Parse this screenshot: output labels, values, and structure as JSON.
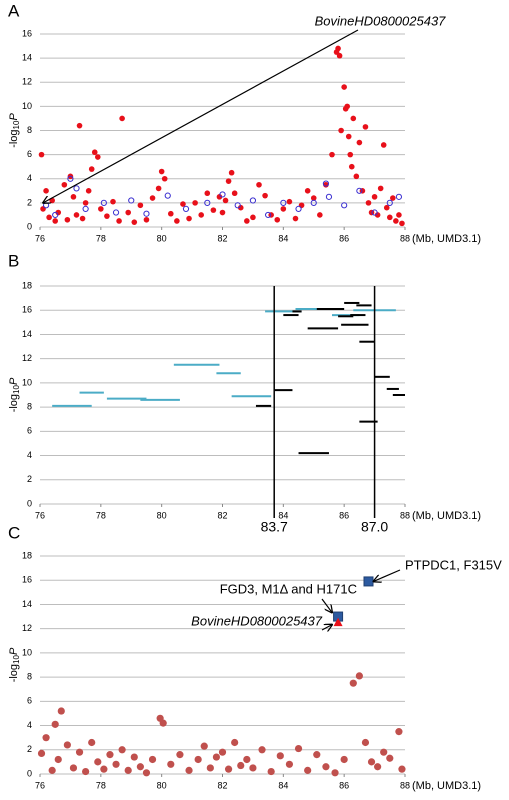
{
  "chart_data": [
    {
      "type": "scatter",
      "label": "A",
      "ylabel": [
        "-log",
        "10",
        "P"
      ],
      "xlabel": "(Mb, UMD3.1)",
      "annotations": [
        "BovineHD0800025437"
      ],
      "xlim": [
        76,
        88
      ],
      "xticks": [
        76,
        78,
        80,
        82,
        84,
        86,
        88
      ],
      "ylim": [
        0,
        16
      ],
      "yticks": [
        0,
        2,
        4,
        6,
        8,
        10,
        12,
        14,
        16
      ],
      "grid": true,
      "series": [
        {
          "color": "#e8101a",
          "marker": "circle",
          "x": [
            76.05,
            76.1,
            76.2,
            76.3,
            76.4,
            76.5,
            76.6,
            76.8,
            76.9,
            77.0,
            77.1,
            77.2,
            77.3,
            77.4,
            77.5,
            77.6,
            77.7,
            77.8,
            77.9,
            78.0,
            78.2,
            78.4,
            78.6,
            78.7,
            78.9,
            79.1,
            79.3,
            79.5,
            79.7,
            79.9,
            80.0,
            80.1,
            80.3,
            80.5,
            80.7,
            80.9,
            81.1,
            81.3,
            81.5,
            81.7,
            81.9,
            82.0,
            82.1,
            82.2,
            82.3,
            82.4,
            82.6,
            82.8,
            83.0,
            83.2,
            83.4,
            83.6,
            83.8,
            84.0,
            84.2,
            84.4,
            84.6,
            84.8,
            85.0,
            85.2,
            85.4,
            85.6,
            85.75,
            85.8,
            85.85,
            85.9,
            86.0,
            86.05,
            86.1,
            86.15,
            86.2,
            86.25,
            86.3,
            86.4,
            86.5,
            86.6,
            86.7,
            86.8,
            86.9,
            87.0,
            87.1,
            87.2,
            87.3,
            87.4,
            87.5,
            87.6,
            87.7,
            87.8,
            87.9
          ],
          "values": [
            6.0,
            1.5,
            3.0,
            0.8,
            2.2,
            0.5,
            1.2,
            3.5,
            0.6,
            4.2,
            2.5,
            1.0,
            8.4,
            0.7,
            2.0,
            3.0,
            4.8,
            6.2,
            5.8,
            1.5,
            0.9,
            2.1,
            0.5,
            9.0,
            1.2,
            0.4,
            1.8,
            0.6,
            2.4,
            3.2,
            4.6,
            4.0,
            1.1,
            0.5,
            1.9,
            0.7,
            2.0,
            1.0,
            2.8,
            1.4,
            2.5,
            1.2,
            2.2,
            3.8,
            4.5,
            2.8,
            1.6,
            0.5,
            0.8,
            3.5,
            2.6,
            1.0,
            0.6,
            1.5,
            2.1,
            0.7,
            1.8,
            3.0,
            2.4,
            1.0,
            3.5,
            6.0,
            14.5,
            14.8,
            14.2,
            8.0,
            11.6,
            9.8,
            10.0,
            7.5,
            6.0,
            5.0,
            9.0,
            4.2,
            7.0,
            3.0,
            8.3,
            2.0,
            1.2,
            2.5,
            1.0,
            3.2,
            6.8,
            1.6,
            0.8,
            2.4,
            0.5,
            1.0,
            0.3
          ]
        },
        {
          "color": "#3a2fd0",
          "marker": "open-circle",
          "x": [
            76.2,
            76.5,
            77.0,
            77.2,
            77.5,
            78.1,
            78.5,
            79.0,
            79.5,
            80.2,
            80.8,
            81.5,
            82.0,
            82.5,
            83.0,
            83.5,
            84.0,
            84.5,
            85.0,
            85.4,
            85.5,
            86.0,
            86.5,
            87.0,
            87.5,
            87.8
          ],
          "values": [
            1.8,
            1.0,
            4.0,
            3.2,
            1.5,
            2.0,
            1.2,
            2.2,
            1.1,
            2.6,
            1.5,
            2.0,
            2.7,
            1.8,
            2.2,
            1.0,
            2.0,
            1.5,
            2.0,
            3.6,
            2.5,
            1.8,
            3.0,
            1.2,
            2.0,
            2.5
          ]
        }
      ]
    },
    {
      "type": "segment",
      "label": "B",
      "ylabel": [
        "-log",
        "10",
        "P"
      ],
      "xlabel": "(Mb, UMD3.1)",
      "xlim": [
        76,
        88
      ],
      "xticks": [
        76,
        78,
        80,
        82,
        84,
        86,
        88
      ],
      "ylim": [
        0,
        18
      ],
      "yticks": [
        0,
        2,
        4,
        6,
        8,
        10,
        12,
        14,
        16,
        18
      ],
      "grid": true,
      "vlines": [
        83.7,
        {
          "value": 87,
          "label": "87.0"
        }
      ],
      "series": [
        {
          "color": "#4bacc6",
          "x_start": [
            76.4,
            77.3,
            78.2,
            79.3,
            80.4,
            81.8,
            82.3,
            83.4,
            84.4,
            85.6,
            86.3
          ],
          "x_end": [
            77.7,
            78.1,
            79.5,
            80.6,
            81.9,
            82.6,
            83.6,
            84.6,
            85.5,
            86.5,
            87.7
          ],
          "values": [
            8.1,
            9.2,
            8.7,
            8.6,
            11.5,
            10.8,
            8.9,
            15.9,
            16.1,
            15.6,
            16.0
          ]
        },
        {
          "color": "#000000",
          "x_start": [
            83.1,
            83.7,
            84.0,
            84.3,
            84.5,
            84.8,
            85.1,
            85.8,
            85.9,
            86.0,
            86.4,
            86.5,
            86.5,
            87.0,
            87.4,
            87.6,
            86.2
          ],
          "x_end": [
            83.6,
            84.3,
            84.5,
            84.6,
            85.5,
            85.8,
            86.0,
            86.3,
            86.8,
            86.5,
            86.9,
            87.0,
            87.1,
            87.5,
            87.8,
            88.0,
            86.7
          ],
          "values": [
            8.1,
            9.4,
            15.6,
            15.9,
            4.2,
            14.5,
            16.1,
            15.5,
            14.8,
            16.6,
            16.4,
            13.4,
            6.8,
            10.5,
            9.5,
            9.0,
            15.6
          ]
        }
      ]
    },
    {
      "type": "scatter",
      "label": "C",
      "ylabel": [
        "-log",
        "10",
        "P"
      ],
      "xlabel": "(Mb, UMD3.1)",
      "annotations": [
        "PTPDC1, F315V",
        "FGD3, M1Δ and H171C",
        "BovineHD0800025437"
      ],
      "xlim": [
        76,
        88
      ],
      "xticks": [
        76,
        78,
        80,
        82,
        84,
        86,
        88
      ],
      "ylim": [
        0,
        18
      ],
      "yticks": [
        0,
        2,
        4,
        6,
        8,
        10,
        12,
        14,
        16,
        18
      ],
      "grid": true,
      "series": [
        {
          "color": "#c0504d",
          "marker": "circle",
          "x": [
            76.05,
            76.2,
            76.4,
            76.5,
            76.6,
            76.7,
            76.9,
            77.1,
            77.3,
            77.5,
            77.7,
            77.9,
            78.1,
            78.3,
            78.5,
            78.7,
            78.9,
            79.1,
            79.3,
            79.5,
            79.7,
            79.95,
            80.05,
            80.3,
            80.6,
            80.9,
            81.2,
            81.4,
            81.6,
            81.8,
            82.0,
            82.2,
            82.4,
            82.6,
            82.8,
            83.0,
            83.3,
            83.6,
            83.9,
            84.2,
            84.5,
            84.8,
            85.1,
            85.4,
            85.7,
            86.0,
            86.3,
            86.5,
            86.7,
            86.9,
            87.1,
            87.3,
            87.5,
            87.8,
            87.9
          ],
          "values": [
            1.7,
            3.0,
            0.3,
            4.1,
            1.2,
            5.2,
            2.4,
            0.5,
            1.8,
            0.2,
            2.6,
            1.0,
            0.4,
            1.6,
            0.8,
            2.0,
            0.3,
            1.4,
            0.6,
            0.1,
            1.2,
            4.6,
            4.2,
            0.8,
            1.6,
            0.3,
            1.2,
            2.3,
            0.5,
            1.4,
            1.8,
            0.4,
            2.6,
            0.7,
            1.2,
            0.5,
            2.0,
            0.2,
            1.5,
            0.8,
            2.1,
            0.3,
            1.6,
            0.6,
            0.1,
            1.2,
            7.5,
            8.1,
            2.6,
            1.0,
            0.6,
            1.8,
            1.3,
            3.5,
            0.4
          ]
        },
        {
          "color": "#2c5aa0",
          "marker": "square",
          "x": [
            85.8,
            86.8
          ],
          "values": [
            13.0,
            15.9
          ]
        },
        {
          "color": "#e8101a",
          "marker": "triangle",
          "x": [
            85.8
          ],
          "values": [
            12.5
          ]
        }
      ]
    }
  ]
}
